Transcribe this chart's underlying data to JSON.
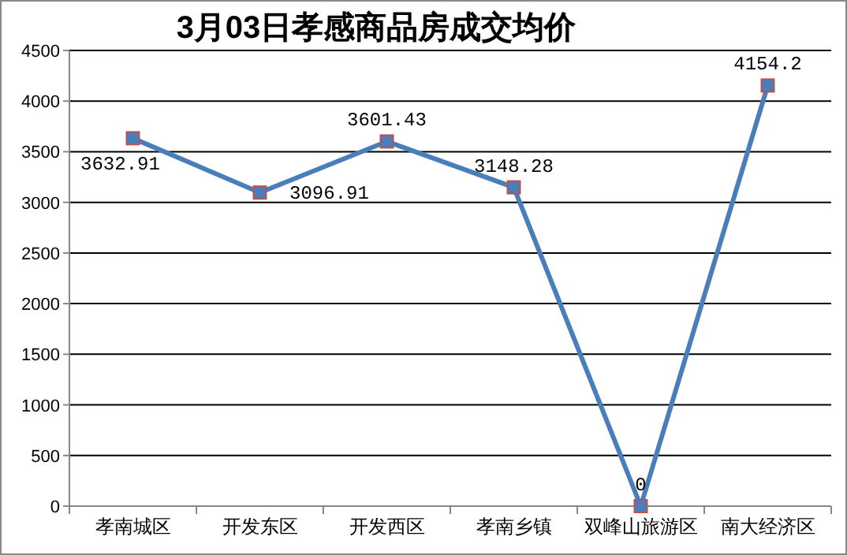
{
  "chart_data": {
    "type": "line",
    "title": "3月03日孝感商品房成交均价",
    "categories": [
      "孝南城区",
      "开发东区",
      "开发西区",
      "孝南乡镇",
      "双峰山旅游区",
      "南大经济区"
    ],
    "series": [
      {
        "color": "#4a7ebb",
        "values": [
          3632.91,
          3096.91,
          3601.43,
          3148.28,
          0,
          4154.2
        ]
      }
    ],
    "ylim": [
      0,
      4500
    ],
    "yticks": [
      0,
      500,
      1000,
      1500,
      2000,
      2500,
      3000,
      3500,
      4000,
      4500
    ],
    "grid": "y",
    "marker": "square",
    "line_style": "solid",
    "data_labels": true
  }
}
